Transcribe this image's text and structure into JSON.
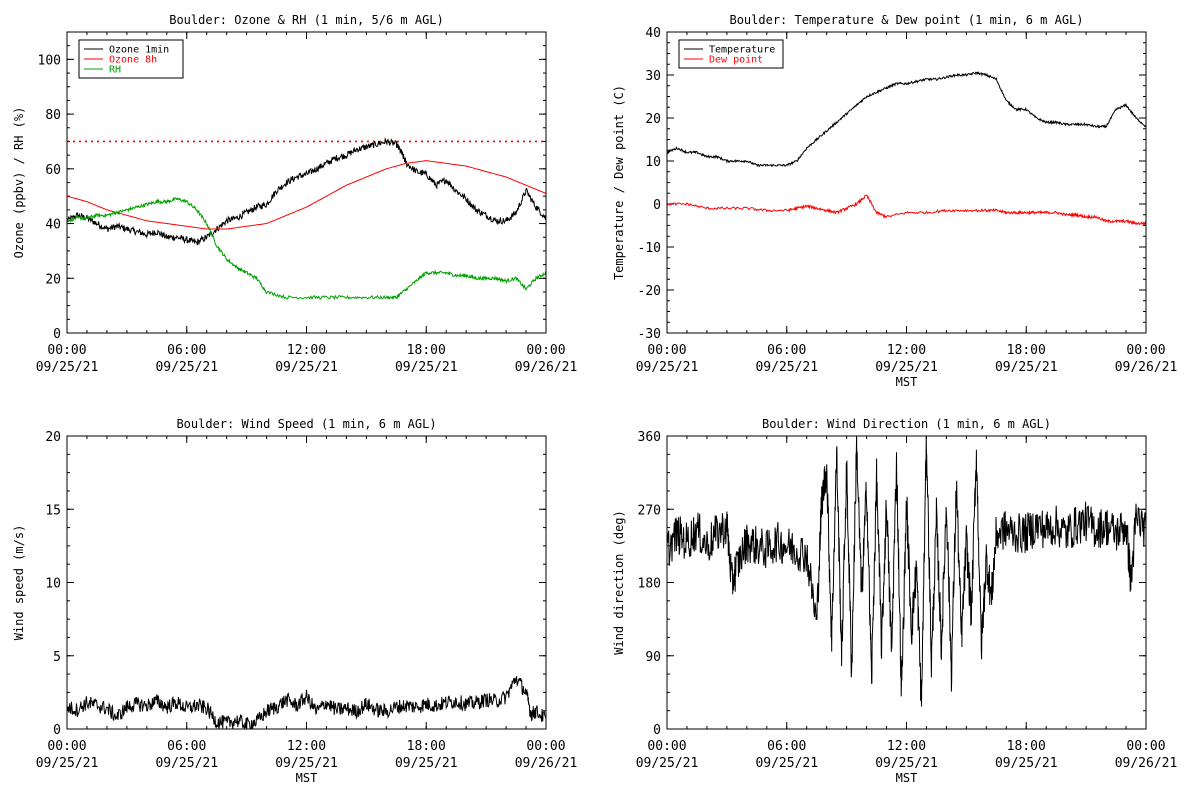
{
  "chart_data": [
    {
      "type": "line",
      "title": "Boulder: Ozone & RH (1 min, 5/6 m AGL)",
      "xlabel": "",
      "ylabel": "Ozone (ppbv) / RH (%)",
      "ylim": [
        0,
        110
      ],
      "yticks": [
        0,
        20,
        40,
        60,
        80,
        100
      ],
      "xticks": [
        {
          "hour": 0,
          "time": "00:00",
          "date": "09/25/21"
        },
        {
          "hour": 6,
          "time": "06:00",
          "date": "09/25/21"
        },
        {
          "hour": 12,
          "time": "12:00",
          "date": "09/25/21"
        },
        {
          "hour": 18,
          "time": "18:00",
          "date": "09/25/21"
        },
        {
          "hour": 24,
          "time": "00:00",
          "date": "09/26/21"
        }
      ],
      "legend_position": "top-left",
      "reference_line": {
        "y": 70,
        "color": "#ff0000",
        "style": "dotted"
      },
      "series": [
        {
          "name": "Ozone 1min",
          "color": "#000000",
          "x": [
            0,
            0.5,
            1,
            1.5,
            2,
            2.5,
            3,
            3.5,
            4,
            4.5,
            5,
            5.5,
            6,
            6.5,
            7,
            7.5,
            8,
            8.5,
            9,
            9.5,
            10,
            10.5,
            11,
            11.5,
            12,
            12.5,
            13,
            13.5,
            14,
            14.5,
            15,
            15.5,
            16,
            16.5,
            16.75,
            17,
            17.5,
            18,
            18.5,
            19,
            19.5,
            20,
            20.5,
            21,
            21.5,
            22,
            22.5,
            23,
            23.5,
            24
          ],
          "y": [
            41,
            43,
            42,
            40,
            38,
            39,
            38,
            37,
            36,
            37,
            35,
            35,
            34,
            33,
            35,
            38,
            41,
            42,
            44,
            46,
            47,
            52,
            55,
            57,
            58,
            60,
            62,
            64,
            65,
            67,
            68,
            69,
            70,
            69,
            66,
            62,
            59,
            58,
            54,
            56,
            52,
            49,
            45,
            43,
            41,
            41,
            44,
            52,
            46,
            42
          ]
        },
        {
          "name": "Ozone 8h",
          "color": "#ff0000",
          "x": [
            0,
            1,
            2,
            3,
            4,
            5,
            6,
            7,
            8,
            9,
            10,
            11,
            12,
            13,
            14,
            15,
            16,
            17,
            18,
            19,
            20,
            21,
            22,
            23,
            24
          ],
          "y": [
            50,
            48,
            45,
            43,
            41,
            40,
            39,
            38,
            38,
            39,
            40,
            43,
            46,
            50,
            54,
            57,
            60,
            62,
            63,
            62,
            61,
            59,
            57,
            54,
            51
          ]
        },
        {
          "name": "RH",
          "color": "#00a000",
          "x": [
            0,
            0.5,
            1,
            1.5,
            2,
            2.5,
            3,
            3.5,
            4,
            4.5,
            5,
            5.5,
            6,
            6.5,
            7,
            7.5,
            8,
            8.5,
            9,
            9.5,
            10,
            11,
            12,
            13,
            14,
            15,
            16,
            16.5,
            17,
            17.5,
            18,
            18.5,
            19,
            19.5,
            20,
            20.5,
            21,
            21.5,
            22,
            22.5,
            23,
            23.5,
            24
          ],
          "y": [
            41,
            42,
            42,
            43,
            43,
            44,
            45,
            46,
            47,
            48,
            48,
            49,
            48,
            45,
            40,
            32,
            27,
            24,
            22,
            20,
            15,
            13,
            13,
            13,
            13,
            13,
            13,
            13,
            16,
            19,
            22,
            22,
            22,
            21,
            21,
            20,
            20,
            20,
            19,
            20,
            16,
            20,
            22
          ]
        }
      ]
    },
    {
      "type": "line",
      "title": "Boulder: Temperature & Dew point (1 min, 6 m AGL)",
      "xlabel": "MST",
      "ylabel": "Temperature / Dew point (C)",
      "ylim": [
        -30,
        40
      ],
      "yticks": [
        -30,
        -20,
        -10,
        0,
        10,
        20,
        30,
        40
      ],
      "xticks": [
        {
          "hour": 0,
          "time": "00:00",
          "date": "09/25/21"
        },
        {
          "hour": 6,
          "time": "06:00",
          "date": "09/25/21"
        },
        {
          "hour": 12,
          "time": "12:00",
          "date": "09/25/21"
        },
        {
          "hour": 18,
          "time": "18:00",
          "date": "09/25/21"
        },
        {
          "hour": 24,
          "time": "00:00",
          "date": "09/26/21"
        }
      ],
      "legend_position": "top-left",
      "series": [
        {
          "name": "Temperature",
          "color": "#000000",
          "x": [
            0,
            0.5,
            1,
            1.5,
            2,
            2.5,
            3,
            3.5,
            4,
            4.5,
            5,
            5.5,
            6,
            6.5,
            7,
            7.5,
            8,
            8.5,
            9,
            9.5,
            10,
            10.5,
            11,
            11.5,
            12,
            12.5,
            13,
            13.5,
            14,
            14.5,
            15,
            15.5,
            16,
            16.5,
            17,
            17.5,
            18,
            18.5,
            19,
            19.5,
            20,
            20.5,
            21,
            21.5,
            22,
            22.5,
            23,
            23.5,
            24
          ],
          "y": [
            12,
            13,
            12,
            12,
            11,
            11,
            10,
            10,
            10,
            9,
            9,
            9,
            9,
            10,
            13,
            15,
            17,
            19,
            21,
            23,
            25,
            26,
            27,
            28,
            28,
            28.5,
            29,
            29,
            29.5,
            30,
            30,
            30.5,
            30,
            29,
            24,
            22,
            22,
            20,
            19,
            19,
            18.5,
            18.5,
            18.5,
            18,
            18,
            22,
            23,
            20,
            18
          ]
        },
        {
          "name": "Dew point",
          "color": "#ff0000",
          "x": [
            0,
            1,
            2,
            3,
            4,
            5,
            6,
            6.5,
            7,
            7.5,
            8,
            8.5,
            9,
            9.5,
            10,
            10.5,
            11,
            12,
            13,
            14,
            15,
            16,
            16.5,
            17,
            17.5,
            18,
            18.5,
            19,
            19.5,
            20,
            20.5,
            21,
            21.5,
            22,
            22.5,
            23,
            23.5,
            24
          ],
          "y": [
            0,
            0,
            -1,
            -1,
            -1,
            -1.5,
            -1.5,
            -1,
            -0.5,
            -1,
            -1.5,
            -2,
            -1,
            0,
            2,
            -2,
            -3,
            -2,
            -2,
            -1.5,
            -1.5,
            -1.5,
            -1.5,
            -2,
            -2,
            -2,
            -2,
            -2,
            -2,
            -2.5,
            -2.5,
            -3,
            -3,
            -4,
            -4,
            -4,
            -4.5,
            -4.5
          ]
        }
      ]
    },
    {
      "type": "line",
      "title": "Boulder: Wind Speed (1 min, 6 m AGL)",
      "xlabel": "MST",
      "ylabel": "Wind speed (m/s)",
      "ylim": [
        0,
        20
      ],
      "yticks": [
        0,
        5,
        10,
        15,
        20
      ],
      "xticks": [
        {
          "hour": 0,
          "time": "00:00",
          "date": "09/25/21"
        },
        {
          "hour": 6,
          "time": "06:00",
          "date": "09/25/21"
        },
        {
          "hour": 12,
          "time": "12:00",
          "date": "09/25/21"
        },
        {
          "hour": 18,
          "time": "18:00",
          "date": "09/25/21"
        },
        {
          "hour": 24,
          "time": "00:00",
          "date": "09/26/21"
        }
      ],
      "series": [
        {
          "name": "",
          "color": "#000000",
          "x": [
            0,
            0.5,
            1,
            1.5,
            2,
            2.5,
            3,
            3.5,
            4,
            4.5,
            5,
            5.5,
            6,
            6.5,
            7,
            7.5,
            8,
            8.5,
            9,
            9.5,
            10,
            10.5,
            11,
            11.5,
            12,
            12.5,
            13,
            13.5,
            14,
            14.5,
            15,
            15.5,
            16,
            16.5,
            17,
            17.5,
            18,
            18.5,
            19,
            19.5,
            20,
            20.5,
            21,
            21.5,
            22,
            22.5,
            23,
            23.25,
            23.5,
            24
          ],
          "y": [
            1.5,
            1.3,
            1.8,
            1.6,
            1.4,
            0.8,
            1.5,
            1.7,
            1.6,
            1.9,
            1.5,
            1.8,
            1.4,
            1.6,
            1.4,
            0.5,
            0.4,
            0.6,
            0.3,
            0.5,
            1.2,
            1.5,
            2.0,
            1.6,
            2.2,
            1.2,
            1.8,
            1.3,
            1.4,
            1.2,
            1.7,
            1.3,
            1.2,
            1.5,
            1.6,
            1.5,
            1.7,
            1.6,
            1.8,
            1.9,
            1.7,
            1.8,
            2.0,
            1.9,
            2.2,
            3.5,
            2.5,
            1.0,
            1.2,
            0.7
          ]
        }
      ]
    },
    {
      "type": "line",
      "title": "Boulder: Wind Direction (1 min, 6 m AGL)",
      "xlabel": "MST",
      "ylabel": "Wind direction (deg)",
      "ylim": [
        0,
        360
      ],
      "yticks": [
        0,
        90,
        180,
        270,
        360
      ],
      "xticks": [
        {
          "hour": 0,
          "time": "00:00",
          "date": "09/25/21"
        },
        {
          "hour": 6,
          "time": "06:00",
          "date": "09/25/21"
        },
        {
          "hour": 12,
          "time": "12:00",
          "date": "09/25/21"
        },
        {
          "hour": 18,
          "time": "18:00",
          "date": "09/25/21"
        },
        {
          "hour": 24,
          "time": "00:00",
          "date": "09/26/21"
        }
      ],
      "series": [
        {
          "name": "",
          "color": "#000000",
          "x": [
            0,
            0.5,
            1,
            1.5,
            2,
            2.5,
            3,
            3.25,
            3.5,
            4,
            4.5,
            5,
            5.5,
            6,
            6.5,
            7,
            7.5,
            7.75,
            8,
            8.25,
            8.5,
            8.75,
            9,
            9.25,
            9.5,
            9.75,
            10,
            10.25,
            10.5,
            10.75,
            11,
            11.25,
            11.5,
            11.75,
            12,
            12.25,
            12.5,
            12.75,
            13,
            13.25,
            13.5,
            13.75,
            14,
            14.25,
            14.5,
            14.75,
            15,
            15.25,
            15.5,
            15.75,
            16,
            16.25,
            16.5,
            17,
            17.5,
            18,
            18.5,
            19,
            19.5,
            20,
            20.5,
            21,
            21.5,
            22,
            22.5,
            23,
            23.25,
            23.5,
            24
          ],
          "y": [
            220,
            240,
            230,
            245,
            225,
            240,
            250,
            180,
            200,
            230,
            225,
            220,
            230,
            225,
            220,
            215,
            130,
            280,
            320,
            110,
            340,
            90,
            320,
            70,
            350,
            160,
            300,
            60,
            310,
            100,
            280,
            90,
            330,
            40,
            280,
            120,
            200,
            30,
            360,
            80,
            260,
            100,
            280,
            70,
            300,
            110,
            230,
            140,
            340,
            100,
            210,
            160,
            240,
            245,
            240,
            240,
            250,
            245,
            250,
            240,
            250,
            255,
            245,
            250,
            240,
            250,
            180,
            260,
            245
          ]
        }
      ]
    }
  ]
}
